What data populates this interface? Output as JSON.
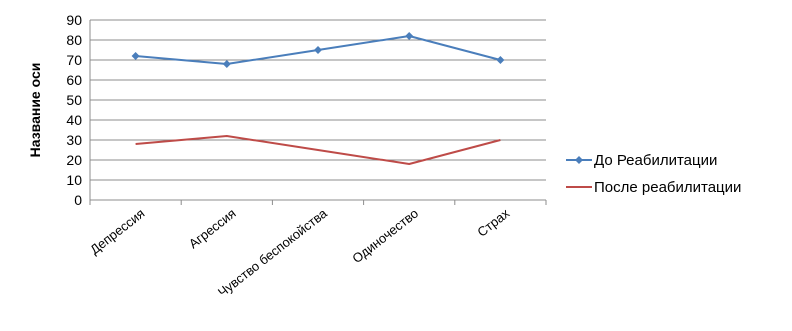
{
  "chart_data": {
    "type": "line",
    "categories": [
      "Депрессия",
      "Агрессия",
      "Чувство беспокойства",
      "Одиночество",
      "Страх"
    ],
    "series": [
      {
        "name": "До Реабилитации",
        "values": [
          72,
          68,
          75,
          82,
          70
        ],
        "color": "#4a7ebb",
        "marker": "diamond"
      },
      {
        "name": "После реабилитации",
        "values": [
          28,
          32,
          25,
          18,
          30
        ],
        "color": "#be4b48",
        "marker": "none"
      }
    ],
    "title": "",
    "xlabel": "",
    "ylabel": "Название оси",
    "ylim": [
      0,
      90
    ],
    "yticks": [
      0,
      10,
      20,
      30,
      40,
      50,
      60,
      70,
      80,
      90
    ],
    "grid": true,
    "legend": "right"
  }
}
